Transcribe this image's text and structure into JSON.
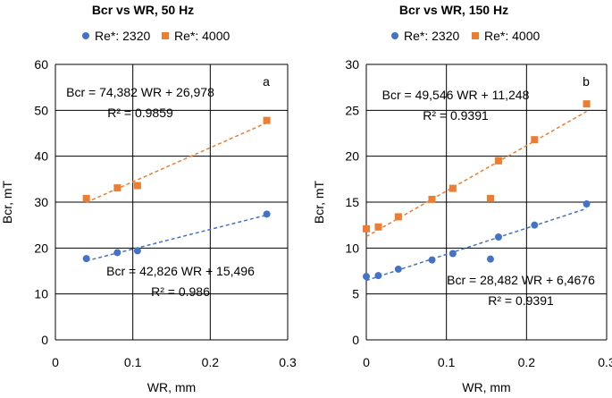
{
  "chart_data": [
    {
      "type": "scatter",
      "title": "Bcr vs WR, 50 Hz",
      "panel_label": "a",
      "xlabel": "WR, mm",
      "ylabel": "Bcr, mT",
      "xlim": [
        0,
        0.3
      ],
      "ylim": [
        0,
        60
      ],
      "xticks": [
        0,
        0.1,
        0.2,
        0.3
      ],
      "xtick_labels": [
        "0",
        "0.1",
        "0.2",
        "0.3"
      ],
      "yticks": [
        0,
        10,
        20,
        30,
        40,
        50,
        60
      ],
      "ytick_labels": [
        "0",
        "10",
        "20",
        "30",
        "40",
        "50",
        "60"
      ],
      "grid": true,
      "legend_position": "top",
      "series": [
        {
          "name": "Re*: 2320",
          "marker": "circle",
          "color": "#4472C4",
          "x": [
            0.04,
            0.08,
            0.106,
            0.273
          ],
          "y": [
            17.7,
            19.0,
            19.4,
            27.4
          ],
          "trendline": {
            "slope": 42.826,
            "intercept": 15.496,
            "x_range": [
              0.04,
              0.273
            ],
            "equation": "Bcr = 42,826 WR + 15,496",
            "r2": "R² = 0.986",
            "label_position": "bottom-right"
          }
        },
        {
          "name": "Re*: 4000",
          "marker": "square",
          "color": "#ED7D31",
          "x": [
            0.04,
            0.08,
            0.106,
            0.273
          ],
          "y": [
            30.8,
            33.1,
            33.6,
            47.8
          ],
          "trendline": {
            "slope": 74.382,
            "intercept": 26.978,
            "x_range": [
              0.04,
              0.273
            ],
            "equation": "Bcr = 74,382 WR + 26,978",
            "r2": "R² = 0.9859",
            "label_position": "top-left"
          }
        }
      ]
    },
    {
      "type": "scatter",
      "title": "Bcr vs WR, 150 Hz",
      "panel_label": "b",
      "xlabel": "WR, mm",
      "ylabel": "Bcr, mT",
      "xlim": [
        0,
        0.3
      ],
      "ylim": [
        0,
        30
      ],
      "xticks": [
        0,
        0.1,
        0.2,
        0.3
      ],
      "xtick_labels": [
        "0",
        "0.1",
        "0.2",
        "0.3"
      ],
      "yticks": [
        0,
        5,
        10,
        15,
        20,
        25,
        30
      ],
      "ytick_labels": [
        "0",
        "5",
        "10",
        "15",
        "20",
        "25",
        "30"
      ],
      "grid": true,
      "legend_position": "top",
      "series": [
        {
          "name": "Re*: 2320",
          "marker": "circle",
          "color": "#4472C4",
          "x": [
            0,
            0.015,
            0.04,
            0.082,
            0.108,
            0.155,
            0.165,
            0.21,
            0.275
          ],
          "y": [
            6.9,
            7.0,
            7.7,
            8.7,
            9.4,
            8.8,
            11.2,
            12.5,
            14.8
          ],
          "trendline": {
            "slope": 28.482,
            "intercept": 6.4676,
            "x_range": [
              0,
              0.275
            ],
            "equation": "Bcr = 28,482 WR + 6,4676",
            "r2": "R² = 0.9391",
            "label_position": "bottom-right"
          }
        },
        {
          "name": "Re*: 4000",
          "marker": "square",
          "color": "#ED7D31",
          "x": [
            0,
            0.015,
            0.04,
            0.082,
            0.108,
            0.155,
            0.165,
            0.21,
            0.275
          ],
          "y": [
            12.1,
            12.3,
            13.4,
            15.3,
            16.5,
            15.4,
            19.5,
            21.8,
            25.7
          ],
          "trendline": {
            "slope": 49.546,
            "intercept": 11.248,
            "x_range": [
              0,
              0.275
            ],
            "equation": "Bcr = 49,546 WR + 11,248",
            "r2": "R² = 0.9391",
            "label_position": "top-left"
          }
        }
      ]
    }
  ]
}
